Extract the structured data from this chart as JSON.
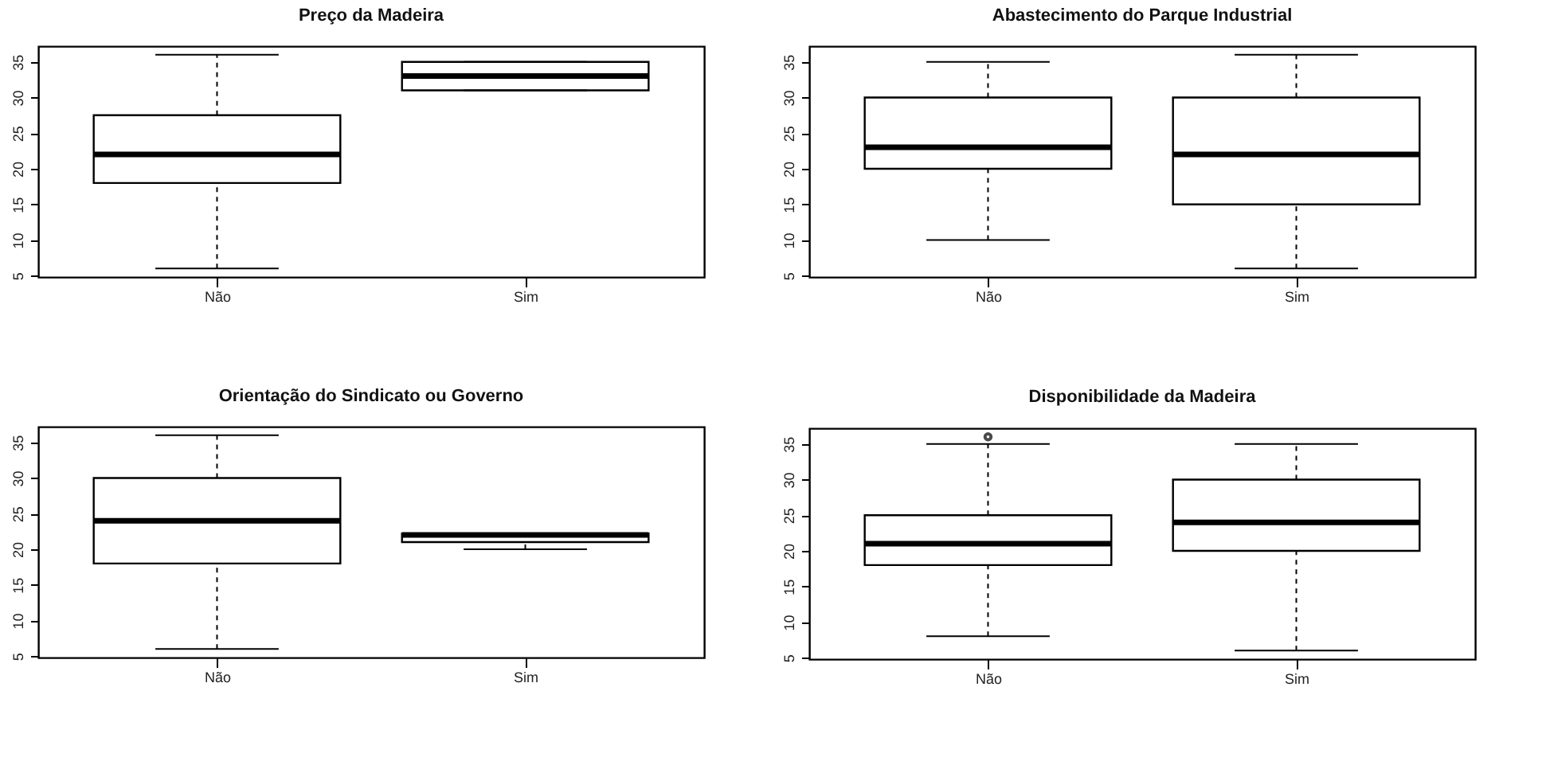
{
  "chart_data": [
    {
      "type": "box",
      "title": "Preço da Madeira",
      "categories": [
        "Não",
        "Sim"
      ],
      "boxes": [
        {
          "low": 6,
          "q1": 18,
          "median": 22,
          "q3": 27.5,
          "high": 36
        },
        {
          "low": 31,
          "q1": 31,
          "median": 33,
          "q3": 35,
          "high": 35
        }
      ],
      "ylim": [
        4.8,
        37.2
      ],
      "yticks": [
        5,
        10,
        15,
        20,
        25,
        30,
        35
      ],
      "grid": false
    },
    {
      "type": "box",
      "title": "Abastecimento do Parque Industrial",
      "categories": [
        "Não",
        "Sim"
      ],
      "boxes": [
        {
          "low": 10,
          "q1": 20,
          "median": 23,
          "q3": 30,
          "high": 35
        },
        {
          "low": 6,
          "q1": 15,
          "median": 22,
          "q3": 30,
          "high": 36
        }
      ],
      "ylim": [
        4.8,
        37.2
      ],
      "yticks": [
        5,
        10,
        15,
        20,
        25,
        30,
        35
      ],
      "grid": false
    },
    {
      "type": "box",
      "title": "Orientação do Sindicato ou Governo",
      "categories": [
        "Não",
        "Sim"
      ],
      "boxes": [
        {
          "low": 6,
          "q1": 18,
          "median": 24,
          "q3": 30,
          "high": 36
        },
        {
          "low": 20,
          "q1": 21,
          "median": 22,
          "q3": 22.2,
          "high": 22.2
        }
      ],
      "ylim": [
        4.8,
        37.2
      ],
      "yticks": [
        5,
        10,
        15,
        20,
        25,
        30,
        35
      ],
      "grid": false
    },
    {
      "type": "box",
      "title": "Disponibilidade da Madeira",
      "categories": [
        "Não",
        "Sim"
      ],
      "boxes": [
        {
          "low": 8,
          "q1": 18,
          "median": 21,
          "q3": 25,
          "high": 35,
          "outliers": [
            36
          ]
        },
        {
          "low": 6,
          "q1": 20,
          "median": 24,
          "q3": 30,
          "high": 35
        }
      ],
      "ylim": [
        4.8,
        37.2
      ],
      "yticks": [
        5,
        10,
        15,
        20,
        25,
        30,
        35
      ],
      "grid": false
    }
  ]
}
